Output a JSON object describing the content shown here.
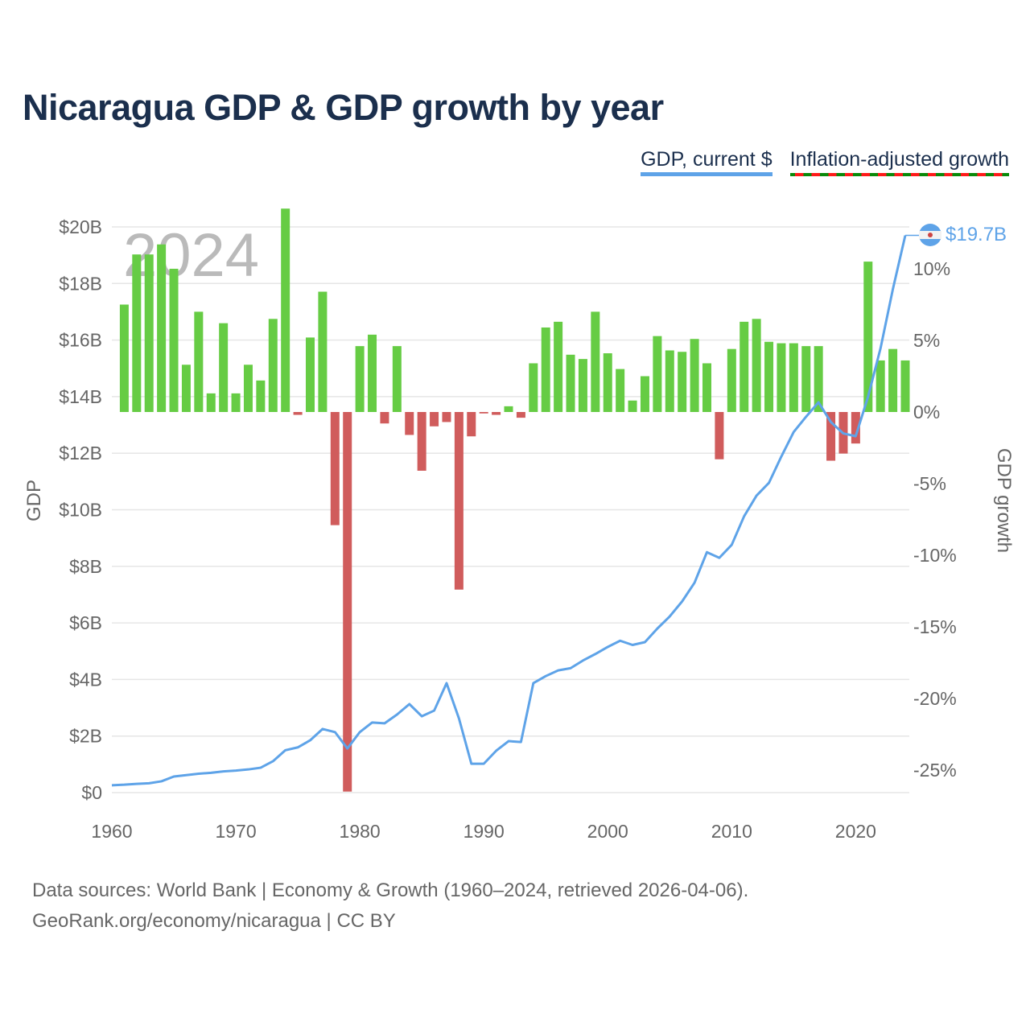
{
  "title": "Nicaragua GDP & GDP growth by year",
  "legend": {
    "gdp": "GDP, current $",
    "growth": "Inflation-adjusted growth"
  },
  "footer": {
    "line1": "Data sources: World Bank | Economy & Growth (1960–2024, retrieved 2026-04-06).",
    "line2": "GeoRank.org/economy/nicaragua | CC BY"
  },
  "colors": {
    "line": "#5ea3e8",
    "positive": "#66cc44",
    "negative": "#d05c5c",
    "title": "#1b2f4d"
  },
  "chart_data": {
    "type": "bar+line",
    "title": "Nicaragua GDP & GDP growth by year",
    "year_label": "2024",
    "last_value_label": "$19.7B",
    "xlabel": "",
    "ylabel_left": "GDP",
    "ylabel_right": "GDP growth",
    "xlim": [
      1960,
      2024
    ],
    "ylim_left": [
      0,
      20
    ],
    "ylim_right": [
      -25,
      10
    ],
    "x_ticks": [
      "1960",
      "1970",
      "1980",
      "1990",
      "2000",
      "2010",
      "2020"
    ],
    "left_ticks": [
      "$0",
      "$2B",
      "$4B",
      "$6B",
      "$8B",
      "$10B",
      "$12B",
      "$14B",
      "$16B",
      "$18B",
      "$20B"
    ],
    "right_ticks": [
      "-25%",
      "-20%",
      "-15%",
      "-10%",
      "-5%",
      "0%",
      "5%",
      "10%"
    ],
    "grid": true,
    "legend_position": "top-right",
    "series": [
      {
        "name": "GDP, current $",
        "type": "line",
        "unit": "billion USD",
        "x": [
          1960,
          1961,
          1962,
          1963,
          1964,
          1965,
          1966,
          1967,
          1968,
          1969,
          1970,
          1971,
          1972,
          1973,
          1974,
          1975,
          1976,
          1977,
          1978,
          1979,
          1980,
          1981,
          1982,
          1983,
          1984,
          1985,
          1986,
          1987,
          1988,
          1989,
          1990,
          1991,
          1992,
          1993,
          1994,
          1995,
          1996,
          1997,
          1998,
          1999,
          2000,
          2001,
          2002,
          2003,
          2004,
          2005,
          2006,
          2007,
          2008,
          2009,
          2010,
          2011,
          2012,
          2013,
          2014,
          2015,
          2016,
          2017,
          2018,
          2019,
          2020,
          2021,
          2022,
          2023,
          2024
        ],
        "values": [
          0.26,
          0.28,
          0.31,
          0.33,
          0.4,
          0.57,
          0.62,
          0.67,
          0.7,
          0.75,
          0.78,
          0.82,
          0.88,
          1.11,
          1.5,
          1.6,
          1.85,
          2.25,
          2.14,
          1.56,
          2.14,
          2.48,
          2.45,
          2.76,
          3.13,
          2.7,
          2.9,
          3.87,
          2.62,
          1.02,
          1.02,
          1.48,
          1.82,
          1.79,
          3.87,
          4.12,
          4.32,
          4.4,
          4.67,
          4.9,
          5.15,
          5.37,
          5.22,
          5.32,
          5.8,
          6.23,
          6.76,
          7.42,
          8.5,
          8.3,
          8.76,
          9.77,
          10.5,
          10.95,
          11.88,
          12.75,
          13.29,
          13.8,
          13.1,
          12.7,
          12.6,
          14.0,
          15.7,
          17.8,
          19.7
        ]
      },
      {
        "name": "Inflation-adjusted growth",
        "type": "bar",
        "unit": "percent",
        "x": [
          1961,
          1962,
          1963,
          1964,
          1965,
          1966,
          1967,
          1968,
          1969,
          1970,
          1971,
          1972,
          1973,
          1974,
          1975,
          1976,
          1977,
          1978,
          1979,
          1980,
          1981,
          1982,
          1983,
          1984,
          1985,
          1986,
          1987,
          1988,
          1989,
          1990,
          1991,
          1992,
          1993,
          1994,
          1995,
          1996,
          1997,
          1998,
          1999,
          2000,
          2001,
          2002,
          2003,
          2004,
          2005,
          2006,
          2007,
          2008,
          2009,
          2010,
          2011,
          2012,
          2013,
          2014,
          2015,
          2016,
          2017,
          2018,
          2019,
          2020,
          2021,
          2022,
          2023,
          2024
        ],
        "values": [
          7.5,
          11.0,
          11.0,
          11.7,
          10.0,
          3.3,
          7.0,
          1.3,
          6.2,
          1.3,
          3.3,
          2.2,
          6.5,
          14.2,
          -0.2,
          5.2,
          8.4,
          -7.9,
          -26.5,
          4.6,
          5.4,
          -0.8,
          4.6,
          -1.6,
          -4.1,
          -1.0,
          -0.7,
          -12.4,
          -1.7,
          -0.1,
          -0.2,
          0.4,
          -0.4,
          3.4,
          5.9,
          6.3,
          4.0,
          3.7,
          7.0,
          4.1,
          3.0,
          0.8,
          2.5,
          5.3,
          4.3,
          4.2,
          5.1,
          3.4,
          -3.3,
          4.4,
          6.3,
          6.5,
          4.9,
          4.8,
          4.8,
          4.6,
          4.6,
          -3.4,
          -2.9,
          -2.2,
          10.5,
          3.6,
          4.4,
          3.6
        ]
      }
    ]
  }
}
